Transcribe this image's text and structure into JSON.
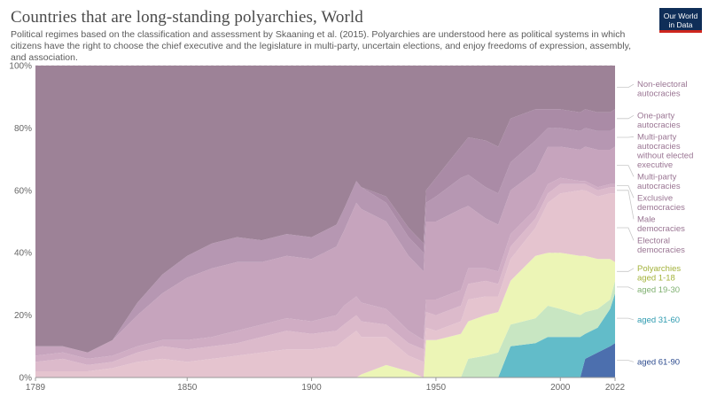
{
  "header": {
    "title": "Countries that are long-standing polyarchies, World",
    "subtitle": "Political regimes based on the classification and assessment by Skaaning et al. (2015). Polyarchies are understood here as political systems in which citizens have the right to choose the chief executive and the legislature in multi-party, uncertain elections, and enjoy freedoms of expression, assembly, and association.",
    "logo_line1": "Our World",
    "logo_line2": "in Data"
  },
  "chart_data": {
    "type": "area",
    "stacked": true,
    "normalized": true,
    "title": "Countries that are long-standing polyarchies, World",
    "x_ticks": [
      "1789",
      "1850",
      "1900",
      "1950",
      "2000",
      "2022"
    ],
    "x_tick_values": [
      1789,
      1850,
      1900,
      1950,
      2000,
      2022
    ],
    "y_ticks": [
      "0%",
      "20%",
      "40%",
      "60%",
      "80%",
      "100%"
    ],
    "y_tick_values": [
      0,
      20,
      40,
      60,
      80,
      100
    ],
    "xlim": [
      1789,
      2022
    ],
    "ylim": [
      0,
      100
    ],
    "grid": "horizontal-dashed",
    "legend_position": "right",
    "x": [
      1789,
      1800,
      1810,
      1820,
      1830,
      1840,
      1850,
      1860,
      1870,
      1880,
      1890,
      1900,
      1910,
      1913,
      1918,
      1920,
      1930,
      1939,
      1945,
      1946,
      1950,
      1960,
      1963,
      1970,
      1975,
      1980,
      1990,
      1995,
      2000,
      2008,
      2010,
      2015,
      2020,
      2022
    ],
    "series": [
      {
        "name": "aged 61-90",
        "color": "#4c6fae",
        "values": [
          0,
          0,
          0,
          0,
          0,
          0,
          0,
          0,
          0,
          0,
          0,
          0,
          0,
          0,
          0,
          0,
          0,
          0,
          0,
          0,
          0,
          0,
          0,
          0,
          0,
          0,
          0,
          0,
          0,
          0,
          6,
          8,
          10,
          11
        ]
      },
      {
        "name": "aged 31-60",
        "color": "#62bcc9",
        "values": [
          0,
          0,
          0,
          0,
          0,
          0,
          0,
          0,
          0,
          0,
          0,
          0,
          0,
          0,
          0,
          0,
          0,
          0,
          0,
          0,
          0,
          0,
          0,
          0,
          0,
          10,
          11,
          13,
          13,
          13,
          8,
          8,
          12,
          16
        ]
      },
      {
        "name": "aged 19-30",
        "color": "#c8e6c2",
        "values": [
          0,
          0,
          0,
          0,
          0,
          0,
          0,
          0,
          0,
          0,
          0,
          0,
          0,
          0,
          0,
          0,
          0,
          0,
          0,
          0,
          0,
          0,
          6,
          7,
          8,
          7,
          8,
          10,
          9,
          7,
          7,
          6,
          3,
          4
        ]
      },
      {
        "name": "Polyarchies aged 1-18",
        "color": "#ecf5b6",
        "values": [
          0,
          0,
          0,
          0,
          0,
          0,
          0,
          0,
          0,
          0,
          0,
          0,
          0,
          0,
          0,
          1,
          4,
          2,
          0,
          12,
          12,
          14,
          12,
          13,
          13,
          14,
          20,
          17,
          18,
          19,
          18,
          16,
          13,
          6
        ]
      },
      {
        "name": "Electoral democracies",
        "color": "#e5c4cf",
        "values": [
          2,
          2,
          2,
          3,
          5,
          6,
          5,
          6,
          7,
          8,
          9,
          9,
          10,
          12,
          15,
          12,
          9,
          5,
          5,
          4,
          3,
          4,
          7,
          6,
          5,
          7,
          9,
          16,
          19,
          21,
          21,
          20,
          21,
          22
        ]
      },
      {
        "name": "Male democracies",
        "color": "#dcbacb",
        "values": [
          3,
          4,
          2,
          2,
          3,
          4,
          4,
          4,
          4,
          5,
          6,
          5,
          5,
          5,
          5,
          5,
          4,
          4,
          4,
          5,
          5,
          5,
          5,
          5,
          4,
          4,
          3,
          3,
          3,
          2,
          2,
          2,
          2,
          2
        ]
      },
      {
        "name": "Exclusive democracies",
        "color": "#d0adc4",
        "values": [
          2,
          2,
          2,
          2,
          2,
          2,
          3,
          3,
          4,
          4,
          4,
          4,
          5,
          6,
          6,
          6,
          5,
          4,
          3,
          4,
          5,
          5,
          5,
          4,
          4,
          4,
          3,
          3,
          2,
          1,
          1,
          1,
          1,
          1
        ]
      },
      {
        "name": "Multi-party autocracies",
        "color": "#c6a4bd",
        "values": [
          3,
          2,
          2,
          5,
          10,
          15,
          20,
          22,
          22,
          20,
          20,
          20,
          22,
          24,
          30,
          30,
          28,
          24,
          22,
          25,
          25,
          26,
          20,
          16,
          15,
          14,
          12,
          12,
          10,
          10,
          11,
          12,
          11,
          12
        ]
      },
      {
        "name": "Multi-party autocracies without elected executive",
        "color": "#b697b2",
        "values": [
          0,
          0,
          0,
          0,
          4,
          6,
          7,
          8,
          8,
          7,
          7,
          7,
          7,
          7,
          7,
          7,
          6,
          6,
          6,
          6,
          8,
          10,
          10,
          10,
          10,
          9,
          10,
          6,
          6,
          6,
          6,
          6,
          6,
          6
        ]
      },
      {
        "name": "One-party autocracies",
        "color": "#aa8ba6",
        "values": [
          0,
          0,
          0,
          0,
          0,
          0,
          0,
          0,
          0,
          0,
          0,
          0,
          0,
          0,
          0,
          0,
          2,
          3,
          3,
          4,
          6,
          10,
          12,
          15,
          15,
          14,
          10,
          6,
          6,
          6,
          6,
          6,
          6,
          6
        ]
      },
      {
        "name": "Non-electoral autocracies",
        "color": "#9d8297",
        "values": [
          90,
          90,
          92,
          88,
          76,
          67,
          61,
          57,
          55,
          56,
          54,
          55,
          51,
          46,
          37,
          39,
          42,
          52,
          57,
          40,
          36,
          26,
          23,
          24,
          26,
          17,
          14,
          14,
          14,
          15,
          14,
          15,
          15,
          14
        ]
      }
    ]
  }
}
